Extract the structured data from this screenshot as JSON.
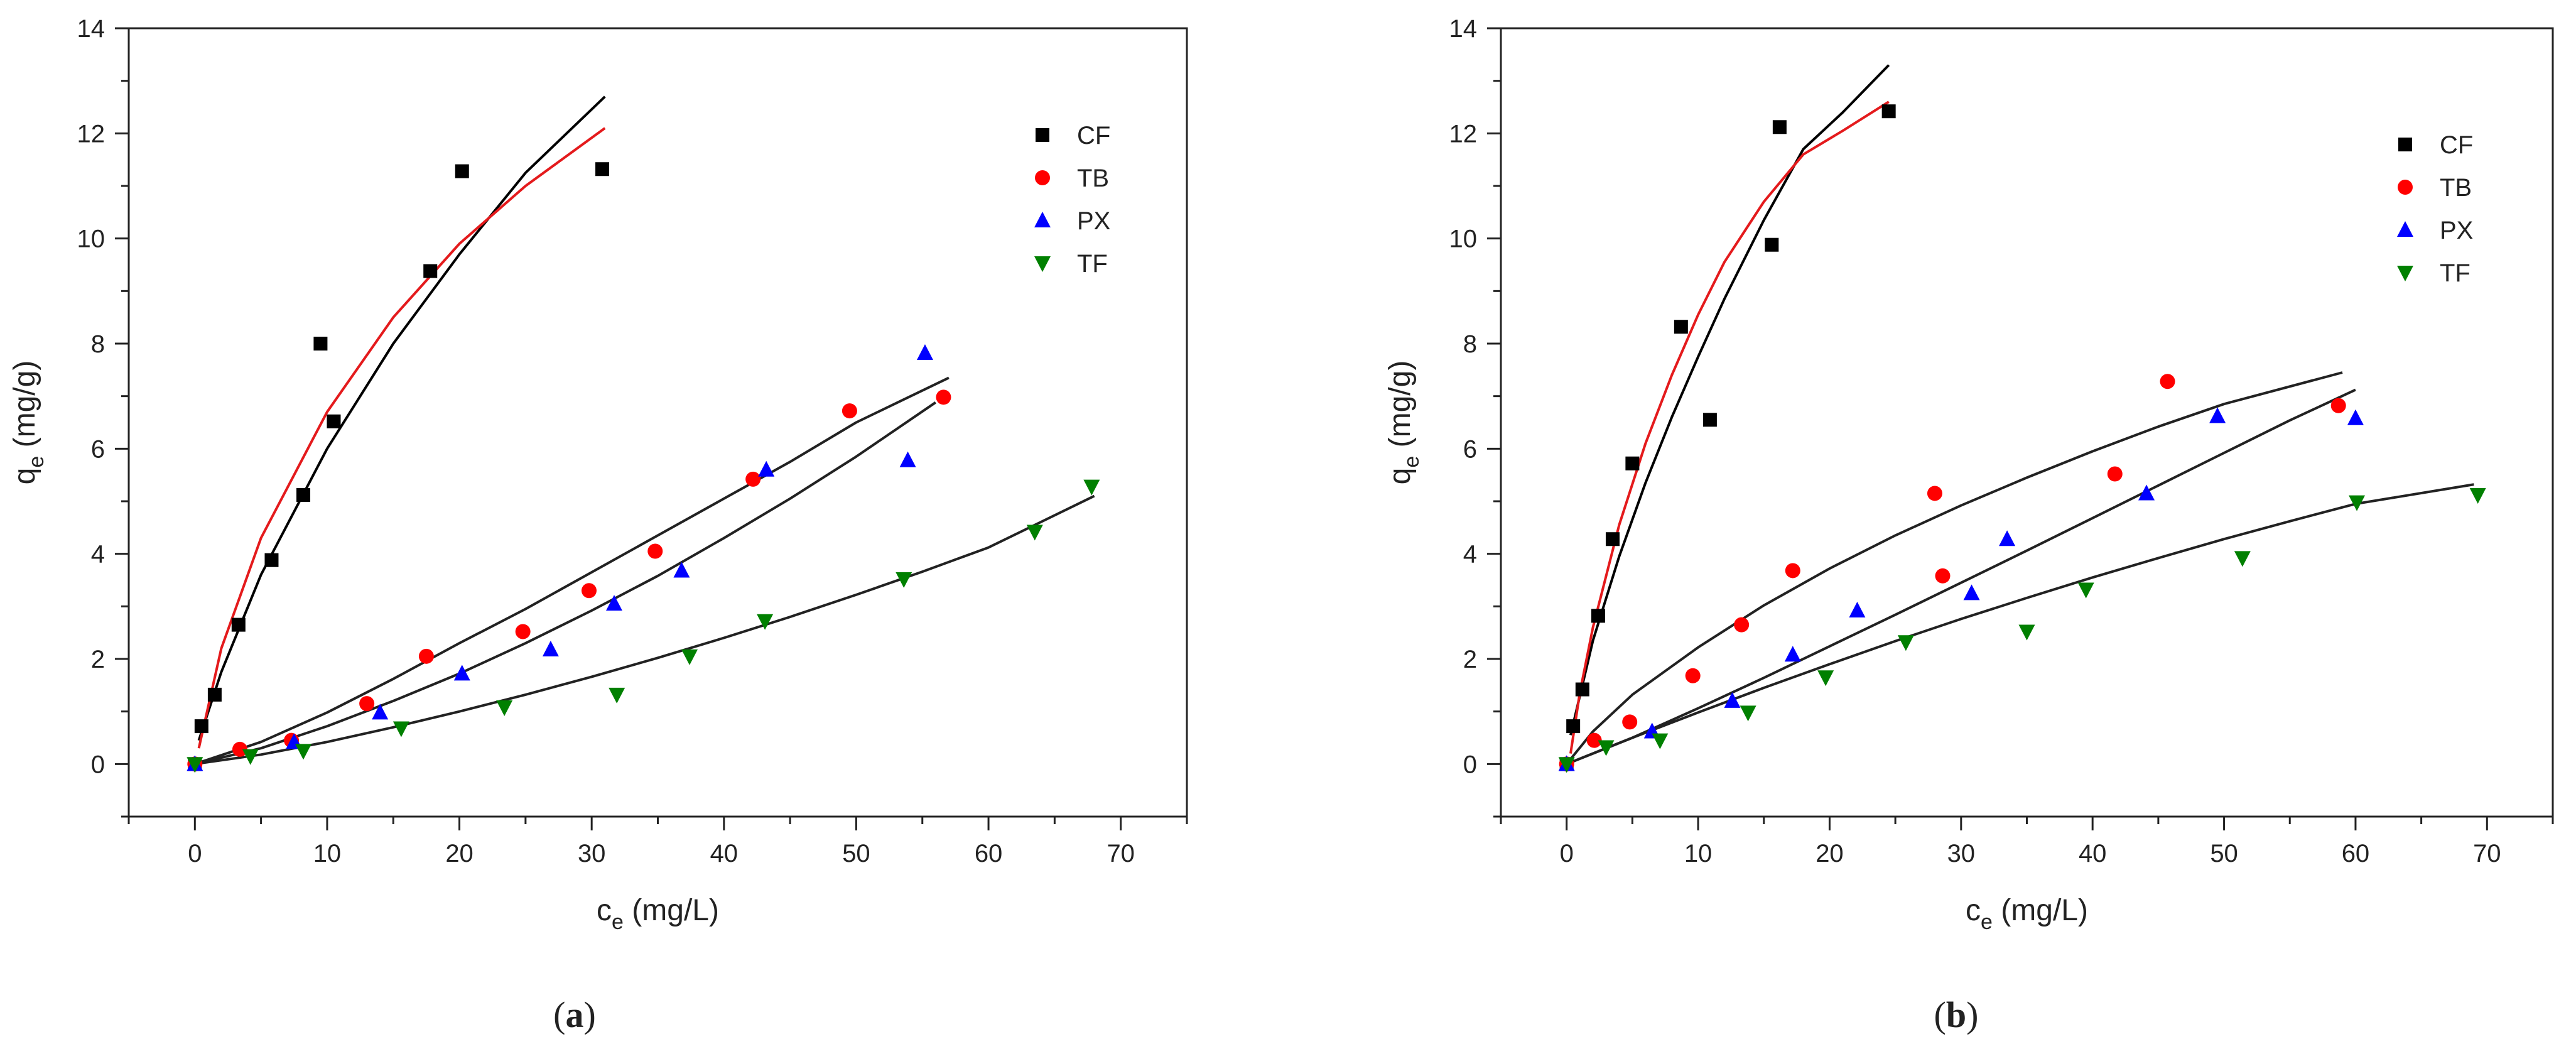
{
  "chart_data": [
    {
      "type": "scatter",
      "panel_label": "a",
      "xlabel": "c",
      "xlabel_sub": "e",
      "xlabel_unit": " (mg/L)",
      "ylabel": "q",
      "ylabel_sub": "e",
      "ylabel_unit": " (mg/g)",
      "xlim": [
        -5,
        75
      ],
      "ylim": [
        -1,
        14
      ],
      "xticks": [
        0,
        10,
        20,
        30,
        40,
        50,
        60,
        70
      ],
      "yticks": [
        0,
        2,
        4,
        6,
        8,
        10,
        12,
        14
      ],
      "legend_position": "top-right",
      "series": [
        {
          "name": "CF",
          "color": "#000000",
          "marker": "square",
          "points": [
            [
              0,
              0
            ],
            [
              0.5,
              0.72
            ],
            [
              1.5,
              1.32
            ],
            [
              3.3,
              2.65
            ],
            [
              5.8,
              3.88
            ],
            [
              8.2,
              5.12
            ],
            [
              9.5,
              8.0
            ],
            [
              10.5,
              6.52
            ],
            [
              17.8,
              9.38
            ],
            [
              20.2,
              11.28
            ],
            [
              30.8,
              11.32
            ]
          ],
          "fits": [
            {
              "color": "#000000",
              "points": [
                [
                  0.3,
                  0.45
                ],
                [
                  2,
                  1.75
                ],
                [
                  5,
                  3.6
                ],
                [
                  10,
                  6.0
                ],
                [
                  15,
                  8.0
                ],
                [
                  20,
                  9.7
                ],
                [
                  25,
                  11.25
                ],
                [
                  31,
                  12.7
                ]
              ]
            },
            {
              "color": "#e41a1c",
              "points": [
                [
                  0.3,
                  0.3
                ],
                [
                  2,
                  2.2
                ],
                [
                  5,
                  4.3
                ],
                [
                  10,
                  6.7
                ],
                [
                  15,
                  8.5
                ],
                [
                  20,
                  9.9
                ],
                [
                  25,
                  11.0
                ],
                [
                  31,
                  12.1
                ]
              ]
            }
          ]
        },
        {
          "name": "TB",
          "color": "#ff0000",
          "marker": "circle",
          "points": [
            [
              0,
              0
            ],
            [
              3.4,
              0.28
            ],
            [
              7.3,
              0.45
            ],
            [
              13,
              1.15
            ],
            [
              17.5,
              2.05
            ],
            [
              24.8,
              2.52
            ],
            [
              29.8,
              3.3
            ],
            [
              34.8,
              4.05
            ],
            [
              42.2,
              5.42
            ],
            [
              49.5,
              6.72
            ],
            [
              56.6,
              6.98
            ]
          ],
          "fits": [
            {
              "color": "#222222",
              "points": [
                [
                  0,
                  0
                ],
                [
                  5,
                  0.42
                ],
                [
                  10,
                  0.98
                ],
                [
                  15,
                  1.62
                ],
                [
                  20,
                  2.3
                ],
                [
                  25,
                  2.95
                ],
                [
                  30,
                  3.65
                ],
                [
                  35,
                  4.35
                ],
                [
                  40,
                  5.05
                ],
                [
                  45,
                  5.75
                ],
                [
                  50,
                  6.5
                ],
                [
                  57,
                  7.35
                ]
              ]
            }
          ]
        },
        {
          "name": "PX",
          "color": "#0000ff",
          "marker": "triangle-up",
          "points": [
            [
              0,
              0
            ],
            [
              7.5,
              0.42
            ],
            [
              14,
              0.98
            ],
            [
              20.2,
              1.72
            ],
            [
              26.9,
              2.18
            ],
            [
              31.7,
              3.05
            ],
            [
              36.8,
              3.68
            ],
            [
              43.2,
              5.6
            ],
            [
              53.9,
              5.78
            ],
            [
              55.2,
              7.82
            ]
          ],
          "fits": [
            {
              "color": "#222222",
              "points": [
                [
                  0,
                  0
                ],
                [
                  5,
                  0.3
                ],
                [
                  10,
                  0.72
                ],
                [
                  15,
                  1.2
                ],
                [
                  20,
                  1.72
                ],
                [
                  25,
                  2.3
                ],
                [
                  30,
                  2.92
                ],
                [
                  35,
                  3.58
                ],
                [
                  40,
                  4.3
                ],
                [
                  45,
                  5.05
                ],
                [
                  50,
                  5.85
                ],
                [
                  56,
                  6.88
                ]
              ]
            }
          ]
        },
        {
          "name": "TF",
          "color": "#008000",
          "marker": "triangle-down",
          "points": [
            [
              0,
              0
            ],
            [
              4.2,
              0.15
            ],
            [
              8.2,
              0.25
            ],
            [
              15.6,
              0.68
            ],
            [
              23.4,
              1.08
            ],
            [
              31.9,
              1.32
            ],
            [
              37.4,
              2.05
            ],
            [
              43.1,
              2.72
            ],
            [
              53.6,
              3.52
            ],
            [
              63.5,
              4.42
            ],
            [
              67.8,
              5.28
            ]
          ],
          "fits": [
            {
              "color": "#222222",
              "points": [
                [
                  0,
                  0
                ],
                [
                  5,
                  0.18
                ],
                [
                  10,
                  0.42
                ],
                [
                  15,
                  0.7
                ],
                [
                  20,
                  1.0
                ],
                [
                  25,
                  1.32
                ],
                [
                  30,
                  1.66
                ],
                [
                  35,
                  2.02
                ],
                [
                  40,
                  2.4
                ],
                [
                  45,
                  2.8
                ],
                [
                  50,
                  3.22
                ],
                [
                  55,
                  3.66
                ],
                [
                  60,
                  4.12
                ],
                [
                  68,
                  5.1
                ]
              ]
            }
          ]
        }
      ]
    },
    {
      "type": "scatter",
      "panel_label": "b",
      "xlabel": "c",
      "xlabel_sub": "e",
      "xlabel_unit": " (mg/L)",
      "ylabel": "q",
      "ylabel_sub": "e",
      "ylabel_unit": " (mg/g)",
      "xlim": [
        -5,
        75
      ],
      "ylim": [
        -1,
        14
      ],
      "xticks": [
        0,
        10,
        20,
        30,
        40,
        50,
        60,
        70
      ],
      "yticks": [
        0,
        2,
        4,
        6,
        8,
        10,
        12,
        14
      ],
      "legend_position": "top-right",
      "series": [
        {
          "name": "CF",
          "color": "#000000",
          "marker": "square",
          "points": [
            [
              0,
              0
            ],
            [
              0.5,
              0.72
            ],
            [
              1.2,
              1.42
            ],
            [
              2.4,
              2.82
            ],
            [
              3.5,
              4.28
            ],
            [
              5.0,
              5.72
            ],
            [
              8.7,
              8.32
            ],
            [
              10.9,
              6.55
            ],
            [
              15.6,
              9.88
            ],
            [
              16.2,
              12.12
            ],
            [
              24.5,
              12.42
            ]
          ],
          "fits": [
            {
              "color": "#000000",
              "points": [
                [
                  0.3,
                  0.55
                ],
                [
                  2,
                  2.35
                ],
                [
                  4,
                  3.95
                ],
                [
                  6,
                  5.35
                ],
                [
                  8,
                  6.6
                ],
                [
                  10,
                  7.75
                ],
                [
                  12,
                  8.85
                ],
                [
                  15,
                  10.35
                ],
                [
                  18,
                  11.7
                ],
                [
                  21,
                  12.4
                ],
                [
                  24.5,
                  13.3
                ]
              ]
            },
            {
              "color": "#e41a1c",
              "points": [
                [
                  0.3,
                  0.2
                ],
                [
                  1,
                  1.35
                ],
                [
                  2,
                  2.6
                ],
                [
                  4,
                  4.55
                ],
                [
                  6,
                  6.1
                ],
                [
                  8,
                  7.4
                ],
                [
                  10,
                  8.55
                ],
                [
                  12,
                  9.55
                ],
                [
                  15,
                  10.7
                ],
                [
                  18,
                  11.6
                ],
                [
                  21,
                  12.05
                ],
                [
                  24.5,
                  12.6
                ]
              ]
            }
          ]
        },
        {
          "name": "TB",
          "color": "#ff0000",
          "marker": "circle",
          "points": [
            [
              0,
              0
            ],
            [
              2.1,
              0.45
            ],
            [
              4.8,
              0.8
            ],
            [
              9.6,
              1.68
            ],
            [
              13.3,
              2.65
            ],
            [
              17.2,
              3.68
            ],
            [
              28,
              5.15
            ],
            [
              28.6,
              3.58
            ],
            [
              41.7,
              5.52
            ],
            [
              45.7,
              7.28
            ],
            [
              58.7,
              6.82
            ]
          ],
          "fits": [
            {
              "color": "#222222",
              "points": [
                [
                  0,
                  0
                ],
                [
                  2,
                  0.62
                ],
                [
                  5,
                  1.32
                ],
                [
                  10,
                  2.22
                ],
                [
                  15,
                  3.02
                ],
                [
                  20,
                  3.72
                ],
                [
                  25,
                  4.35
                ],
                [
                  30,
                  4.92
                ],
                [
                  35,
                  5.45
                ],
                [
                  40,
                  5.95
                ],
                [
                  45,
                  6.42
                ],
                [
                  50,
                  6.85
                ],
                [
                  59,
                  7.45
                ]
              ]
            }
          ]
        },
        {
          "name": "PX",
          "color": "#0000ff",
          "marker": "triangle-up",
          "points": [
            [
              0,
              0
            ],
            [
              6.5,
              0.62
            ],
            [
              12.6,
              1.2
            ],
            [
              17.2,
              2.08
            ],
            [
              22.1,
              2.92
            ],
            [
              30.8,
              3.25
            ],
            [
              33.5,
              4.28
            ],
            [
              44.1,
              5.15
            ],
            [
              49.5,
              6.62
            ],
            [
              60,
              6.58
            ]
          ],
          "fits": [
            {
              "color": "#222222",
              "points": [
                [
                  0,
                  0
                ],
                [
                  5,
                  0.5
                ],
                [
                  10,
                  1.06
                ],
                [
                  15,
                  1.64
                ],
                [
                  20,
                  2.24
                ],
                [
                  25,
                  2.84
                ],
                [
                  30,
                  3.45
                ],
                [
                  35,
                  4.06
                ],
                [
                  40,
                  4.68
                ],
                [
                  45,
                  5.3
                ],
                [
                  50,
                  5.92
                ],
                [
                  55,
                  6.54
                ],
                [
                  60,
                  7.12
                ]
              ]
            }
          ]
        },
        {
          "name": "TF",
          "color": "#008000",
          "marker": "triangle-down",
          "points": [
            [
              0,
              0
            ],
            [
              3,
              0.32
            ],
            [
              7.1,
              0.45
            ],
            [
              13.8,
              0.98
            ],
            [
              19.7,
              1.65
            ],
            [
              25.8,
              2.32
            ],
            [
              35,
              2.52
            ],
            [
              39.5,
              3.32
            ],
            [
              51.4,
              3.92
            ],
            [
              60.1,
              4.98
            ],
            [
              69.3,
              5.12
            ]
          ],
          "fits": [
            {
              "color": "#222222",
              "points": [
                [
                  0,
                  0
                ],
                [
                  5,
                  0.5
                ],
                [
                  10,
                  0.98
                ],
                [
                  15,
                  1.45
                ],
                [
                  20,
                  1.9
                ],
                [
                  25,
                  2.34
                ],
                [
                  30,
                  2.76
                ],
                [
                  35,
                  3.16
                ],
                [
                  40,
                  3.55
                ],
                [
                  45,
                  3.92
                ],
                [
                  50,
                  4.28
                ],
                [
                  55,
                  4.62
                ],
                [
                  60,
                  4.95
                ],
                [
                  69,
                  5.32
                ]
              ]
            }
          ]
        }
      ]
    }
  ]
}
